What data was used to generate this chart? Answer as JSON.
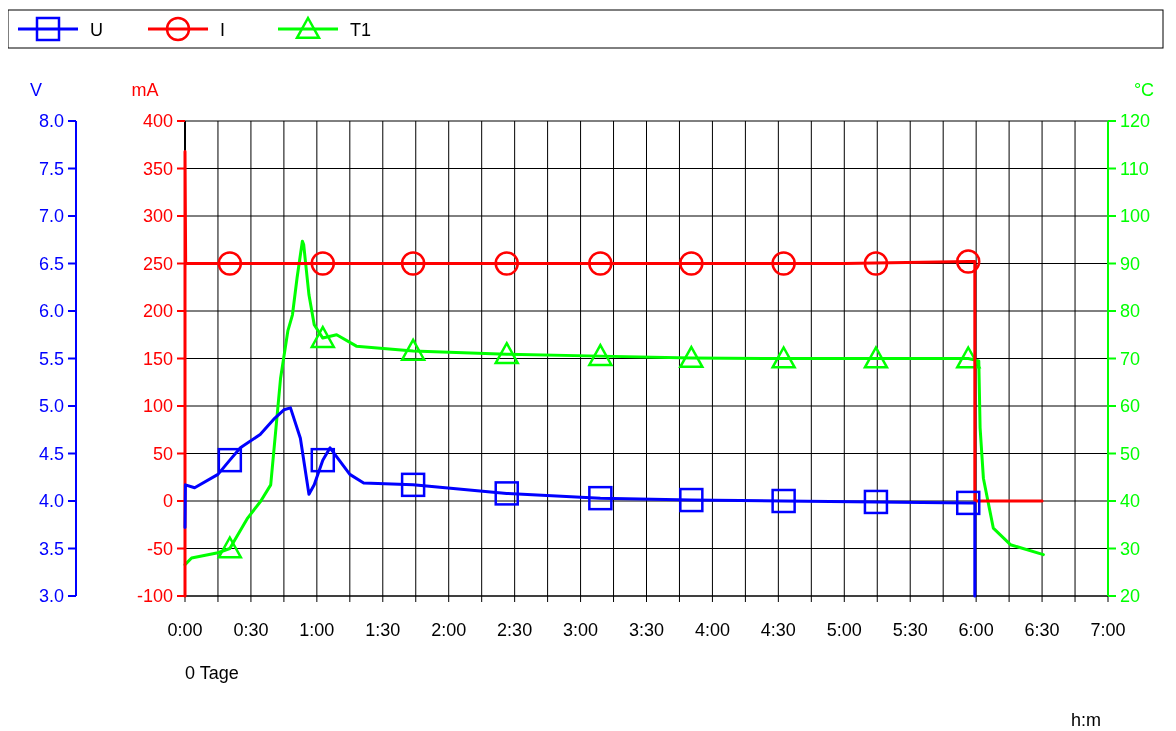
{
  "chart_data": {
    "type": "line",
    "xlabel": "h:m",
    "ylabel": "V",
    "y2label": "mA",
    "y3label": "°C",
    "annotations": [
      "0 Tage"
    ],
    "legend": "top",
    "grid": true,
    "line_style": "solid",
    "xlim": [
      0,
      7
    ],
    "xticks": [
      {
        "value": 0,
        "label": "0:00"
      },
      {
        "value": 0.25,
        "label": null
      },
      {
        "value": 0.5,
        "label": "0:30"
      },
      {
        "value": 0.75,
        "label": null
      },
      {
        "value": 1,
        "label": "1:00"
      },
      {
        "value": 1.25,
        "label": null
      },
      {
        "value": 1.5,
        "label": "1:30"
      },
      {
        "value": 1.75,
        "label": null
      },
      {
        "value": 2,
        "label": "2:00"
      },
      {
        "value": 2.25,
        "label": null
      },
      {
        "value": 2.5,
        "label": "2:30"
      },
      {
        "value": 2.75,
        "label": null
      },
      {
        "value": 3,
        "label": "3:00"
      },
      {
        "value": 3.25,
        "label": null
      },
      {
        "value": 3.5,
        "label": "3:30"
      },
      {
        "value": 3.75,
        "label": null
      },
      {
        "value": 4,
        "label": "4:00"
      },
      {
        "value": 4.25,
        "label": null
      },
      {
        "value": 4.5,
        "label": "4:30"
      },
      {
        "value": 4.75,
        "label": null
      },
      {
        "value": 5,
        "label": "5:00"
      },
      {
        "value": 5.25,
        "label": null
      },
      {
        "value": 5.5,
        "label": "5:30"
      },
      {
        "value": 5.75,
        "label": null
      },
      {
        "value": 6,
        "label": "6:00"
      },
      {
        "value": 6.25,
        "label": null
      },
      {
        "value": 6.5,
        "label": "6:30"
      },
      {
        "value": 6.75,
        "label": null
      },
      {
        "value": 7,
        "label": "7:00"
      }
    ],
    "ylim": [
      3,
      8
    ],
    "yticks": [
      {
        "value": 3,
        "label": "3.0"
      },
      {
        "value": 3.5,
        "label": "3.5"
      },
      {
        "value": 4,
        "label": "4.0"
      },
      {
        "value": 4.5,
        "label": "4.5"
      },
      {
        "value": 5,
        "label": "5.0"
      },
      {
        "value": 5.5,
        "label": "5.5"
      },
      {
        "value": 6,
        "label": "6.0"
      },
      {
        "value": 6.5,
        "label": "6.5"
      },
      {
        "value": 7,
        "label": "7.0"
      },
      {
        "value": 7.5,
        "label": "7.5"
      },
      {
        "value": 8,
        "label": "8.0"
      }
    ],
    "y2lim": [
      -100,
      400
    ],
    "y2ticks": [
      -100,
      -50,
      0,
      50,
      100,
      150,
      200,
      250,
      300,
      350,
      400
    ],
    "y3lim": [
      20,
      120
    ],
    "y3ticks": [
      20,
      30,
      40,
      50,
      60,
      70,
      80,
      90,
      100,
      110,
      120
    ],
    "series": [
      {
        "name": "U",
        "color": "#0000ff",
        "axis": "y",
        "x": [
          0,
          0.003,
          0.073,
          0.25,
          0.34,
          0.42,
          0.57,
          0.68,
          0.75,
          0.8,
          0.875,
          0.94,
          0.98,
          1.045,
          1.1,
          1.25,
          1.355,
          1.73,
          2.44,
          3.15,
          3.84,
          4.54,
          5.24,
          5.94,
          5.99,
          5.99
        ],
        "values": [
          3.72,
          4.17,
          4.14,
          4.28,
          4.43,
          4.56,
          4.7,
          4.87,
          4.96,
          4.98,
          4.66,
          4.07,
          4.17,
          4.43,
          4.56,
          4.28,
          4.19,
          4.17,
          4.08,
          4.03,
          4.01,
          4,
          3.99,
          3.98,
          3.98,
          3
        ]
      },
      {
        "type": "scatter",
        "color": "#0000ff",
        "axis": "y",
        "marker": "square",
        "x": [
          0.34,
          1.045,
          1.73,
          2.44,
          3.15,
          3.84,
          4.54,
          5.24,
          5.94
        ],
        "values": [
          4.43,
          4.43,
          4.17,
          4.08,
          4.03,
          4.01,
          4,
          3.99,
          3.98
        ]
      },
      {
        "name": "I",
        "color": "#ff0000",
        "axis": "y2",
        "x": [
          0,
          0,
          0.005,
          1,
          2,
          3,
          4,
          5,
          5.94,
          5.99,
          5.99,
          6.5
        ],
        "values": [
          -100,
          368,
          250,
          250,
          250,
          250,
          250,
          250,
          252,
          252,
          0,
          0
        ]
      },
      {
        "type": "scatter",
        "color": "#ff0000",
        "axis": "y2",
        "marker": "circle",
        "x": [
          0.34,
          1.045,
          1.73,
          2.44,
          3.15,
          3.84,
          4.54,
          5.24,
          5.94
        ],
        "values": [
          250,
          250,
          250,
          250,
          250,
          250,
          250,
          250,
          252
        ]
      },
      {
        "name": "T1",
        "color": "#00ff00",
        "axis": "y3",
        "x": [
          0,
          0.05,
          0.25,
          0.34,
          0.475,
          0.575,
          0.65,
          0.69,
          0.725,
          0.78,
          0.815,
          0.85,
          0.89,
          0.9,
          0.94,
          0.98,
          1.045,
          1.15,
          1.3,
          1.73,
          2.44,
          3.15,
          3.84,
          4.54,
          5.24,
          5.94,
          6.02,
          6.03,
          6.055,
          6.13,
          6.26,
          6.51
        ],
        "values": [
          26.6,
          28,
          29.1,
          30,
          36.4,
          40,
          43.4,
          55.4,
          65.9,
          75.8,
          79.2,
          87,
          94.7,
          94,
          83.4,
          77.1,
          74.3,
          75,
          72.6,
          71.6,
          70.9,
          70.5,
          70.1,
          70,
          70,
          70,
          69.5,
          55.4,
          44.8,
          34.3,
          30.8,
          28.7
        ]
      },
      {
        "type": "scatter",
        "color": "#00ff00",
        "axis": "y3",
        "marker": "triangle",
        "x": [
          0.34,
          1.045,
          1.73,
          2.44,
          3.15,
          3.84,
          4.54,
          5.24,
          5.94
        ],
        "values": [
          30,
          74.3,
          71.6,
          70.9,
          70.5,
          70.1,
          70,
          70,
          70
        ]
      }
    ]
  }
}
